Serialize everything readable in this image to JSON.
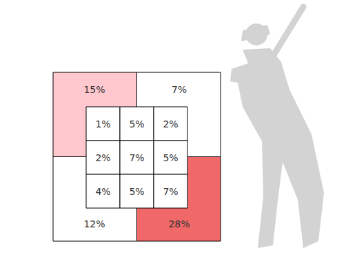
{
  "chart_data": {
    "type": "strike_zone",
    "outer": {
      "values": [
        15,
        7,
        12,
        28
      ],
      "value_labels": [
        "15%",
        "7%",
        "12%",
        "28%"
      ],
      "colors": [
        "#ffc7ce",
        "#ffffff",
        "#ffffff",
        "#f06868"
      ]
    },
    "inner": {
      "values": [
        [
          1,
          5,
          2
        ],
        [
          2,
          7,
          5
        ],
        [
          4,
          5,
          7
        ]
      ],
      "value_labels": [
        [
          "1%",
          "5%",
          "2%"
        ],
        [
          "2%",
          "7%",
          "5%"
        ],
        [
          "4%",
          "5%",
          "7%"
        ]
      ]
    },
    "data_labels": true
  }
}
